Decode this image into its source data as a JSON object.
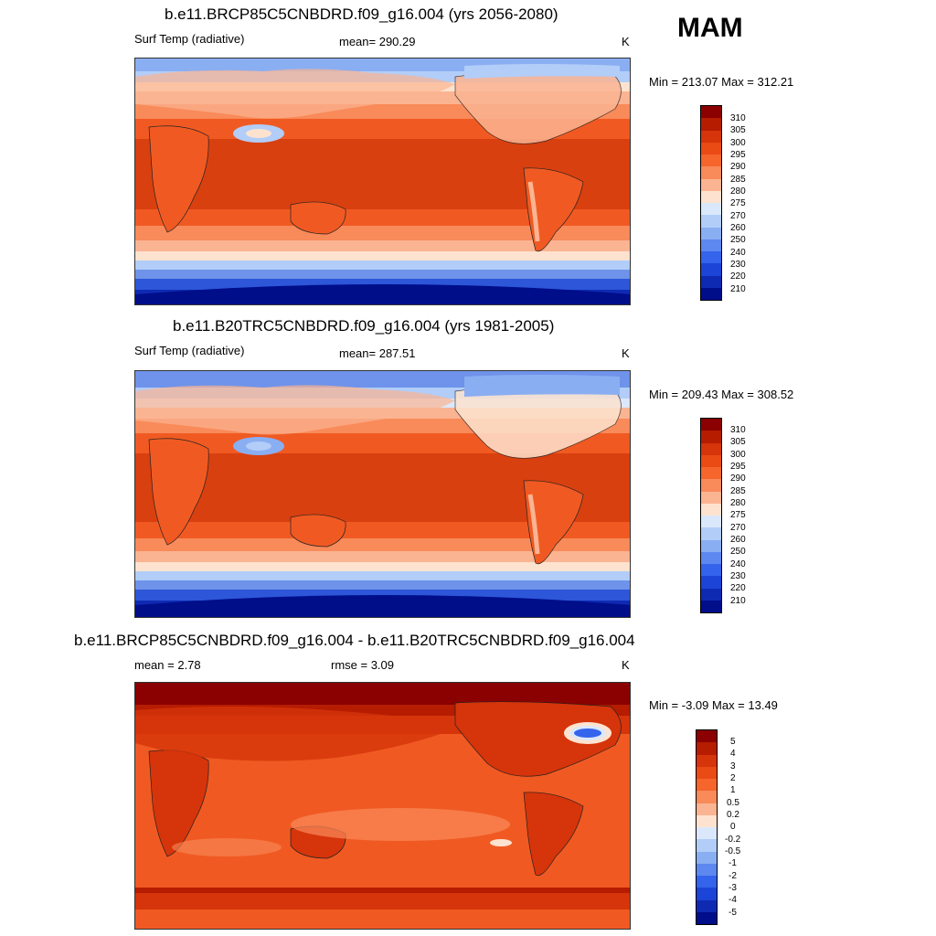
{
  "season": "MAM",
  "panels": [
    {
      "title": "b.e11.BRCP85C5CNBDRD.f09_g16.004 (yrs 2056-2080)",
      "left_label": "Surf Temp (radiative)",
      "center_label": "mean= 290.29",
      "units": "K",
      "minmax": "Min = 213.07 Max = 312.21",
      "levels": [
        "310",
        "305",
        "300",
        "295",
        "290",
        "285",
        "280",
        "275",
        "270",
        "260",
        "250",
        "240",
        "230",
        "220",
        "210"
      ]
    },
    {
      "title": "b.e11.B20TRC5CNBDRD.f09_g16.004 (yrs 1981-2005)",
      "left_label": "Surf Temp (radiative)",
      "center_label": "mean= 287.51",
      "units": "K",
      "minmax": "Min = 209.43 Max = 308.52",
      "levels": [
        "310",
        "305",
        "300",
        "295",
        "290",
        "285",
        "280",
        "275",
        "270",
        "260",
        "250",
        "240",
        "230",
        "220",
        "210"
      ]
    },
    {
      "title": "b.e11.BRCP85C5CNBDRD.f09_g16.004 - b.e11.B20TRC5CNBDRD.f09_g16.004",
      "left_label": "mean =   2.78",
      "center_label": "rmse =   3.09",
      "units": "K",
      "minmax": "Min =  -3.09 Max =  13.49",
      "levels": [
        "5",
        "4",
        "3",
        "2",
        "1",
        "0.5",
        "0.2",
        "0",
        "-0.2",
        "-0.5",
        "-1",
        "-2",
        "-3",
        "-4",
        "-5"
      ]
    }
  ],
  "colorbar_colors": [
    "#8b0000",
    "#b51c00",
    "#d6340a",
    "#ea4a14",
    "#f5652c",
    "#f98a5a",
    "#fbb492",
    "#fde3cf",
    "#dbe8fb",
    "#b2cdf8",
    "#8aaef2",
    "#5d88ef",
    "#3463ec",
    "#1c44d6",
    "#0e2ab3",
    "#000e8a"
  ],
  "colors": {
    "deep_red": "#b52a06",
    "red": "#d8400f",
    "orange": "#f05a22",
    "light_orange": "#f7875a",
    "peach": "#fbbfa0",
    "pale": "#fde8dc",
    "pale_blue": "#d9e6fa",
    "light_blue": "#a9c4f2",
    "blue": "#6f93ea",
    "dark_blue": "#2d56d8",
    "navy": "#0a2da3"
  }
}
